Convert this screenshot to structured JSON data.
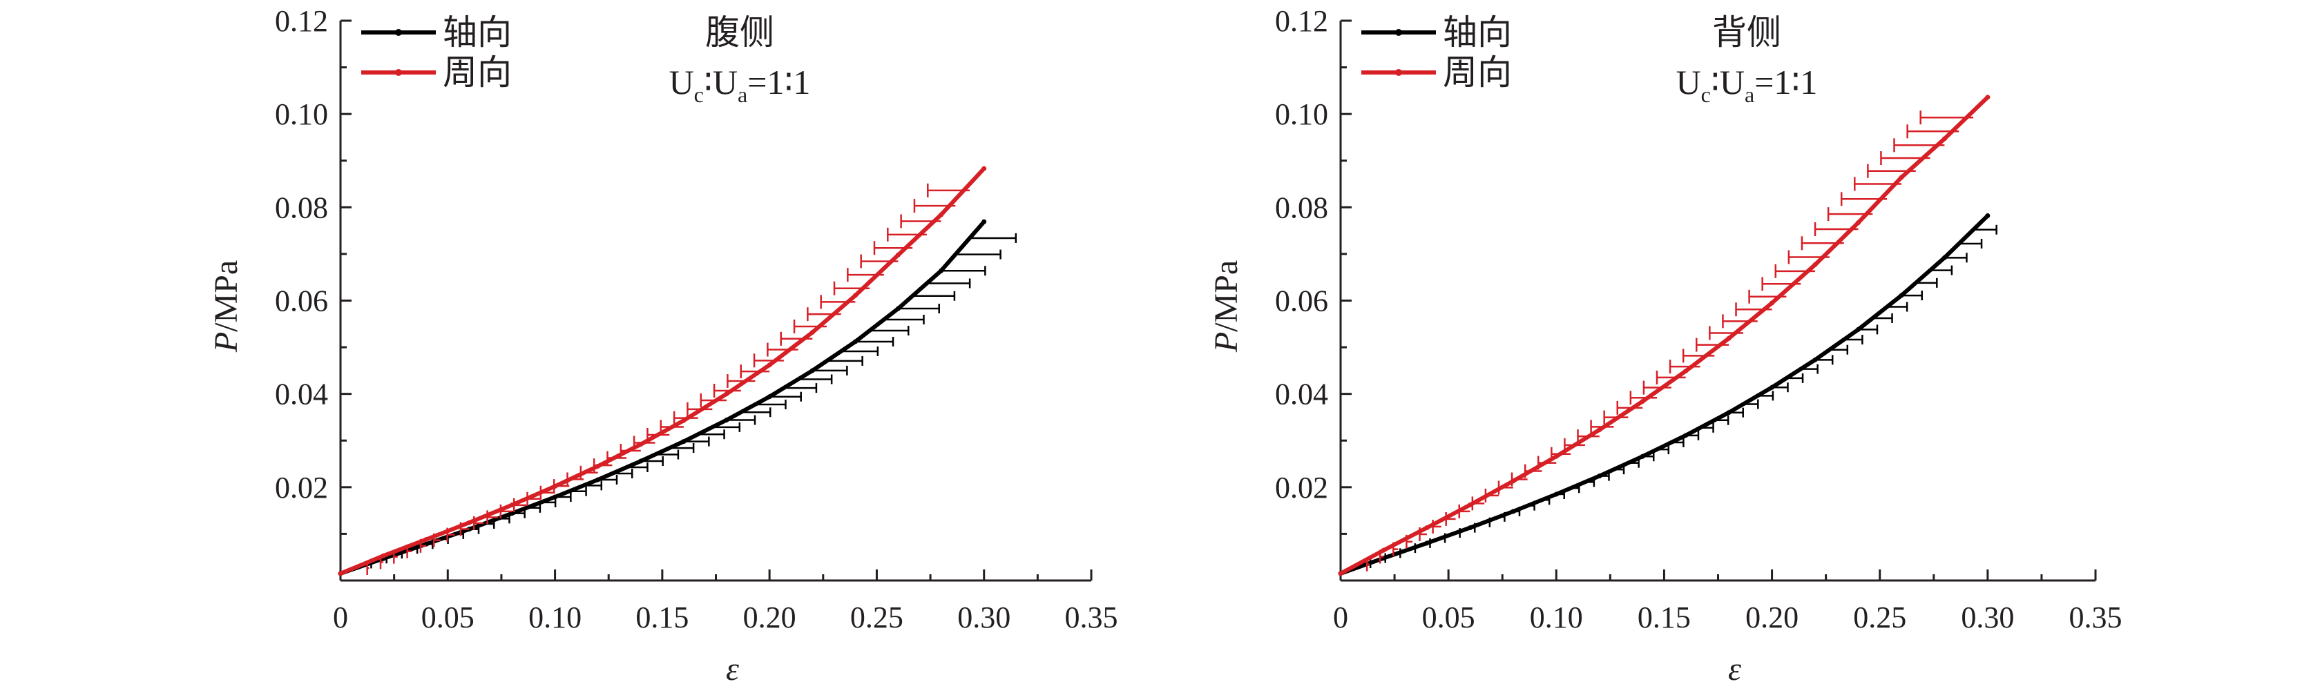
{
  "chart_data": [
    {
      "type": "line",
      "panel_label": "腹侧",
      "ratio_label": {
        "u1": "U",
        "s1": "c",
        "colon": "∶",
        "u2": "U",
        "s2": "a",
        "rest": "=1∶1"
      },
      "xlabel": "ε",
      "ylabel_italic": "P",
      "ylabel_unit": "/MPa",
      "xlim": [
        0,
        0.35
      ],
      "ylim": [
        0,
        0.12
      ],
      "xticks": [
        0,
        0.05,
        0.1,
        0.15,
        0.2,
        0.25,
        0.3,
        0.35
      ],
      "xtick_labels": [
        "0",
        "0.05",
        "0.10",
        "0.15",
        "0.20",
        "0.25",
        "0.30",
        "0.35"
      ],
      "yticks": [
        0.02,
        0.04,
        0.06,
        0.08,
        0.1,
        0.12
      ],
      "ytick_labels": [
        "0.02",
        "0.04",
        "0.06",
        "0.08",
        "0.10",
        "0.12"
      ],
      "legend_position": "top-left",
      "series": [
        {
          "name": "轴向",
          "color": "#000000",
          "x": [
            0,
            0.02,
            0.04,
            0.06,
            0.08,
            0.1,
            0.12,
            0.14,
            0.16,
            0.18,
            0.2,
            0.22,
            0.24,
            0.26,
            0.28,
            0.3
          ],
          "y": [
            0.0015,
            0.0047,
            0.0078,
            0.011,
            0.0144,
            0.0179,
            0.0216,
            0.0256,
            0.0298,
            0.0344,
            0.0394,
            0.045,
            0.0512,
            0.0583,
            0.0664,
            0.0769
          ],
          "error_x_max": 0.022
        },
        {
          "name": "周向",
          "color": "#d71f26",
          "x": [
            0,
            0.02,
            0.04,
            0.06,
            0.08,
            0.1,
            0.12,
            0.14,
            0.16,
            0.18,
            0.2,
            0.22,
            0.24,
            0.26,
            0.28,
            0.3
          ],
          "y": [
            0.0015,
            0.0053,
            0.0088,
            0.0124,
            0.0162,
            0.0202,
            0.0245,
            0.0292,
            0.0343,
            0.04,
            0.0462,
            0.0532,
            0.0611,
            0.0698,
            0.0784,
            0.0883
          ],
          "error_x_max": -0.02
        }
      ]
    },
    {
      "type": "line",
      "panel_label": "背侧",
      "ratio_label": {
        "u1": "U",
        "s1": "c",
        "colon": "∶",
        "u2": "U",
        "s2": "a",
        "rest": "=1∶1"
      },
      "xlabel": "ε",
      "ylabel_italic": "P",
      "ylabel_unit": "/MPa",
      "xlim": [
        0,
        0.35
      ],
      "ylim": [
        0,
        0.12
      ],
      "xticks": [
        0,
        0.05,
        0.1,
        0.15,
        0.2,
        0.25,
        0.3,
        0.35
      ],
      "xtick_labels": [
        "0",
        "0.05",
        "0.10",
        "0.15",
        "0.20",
        "0.25",
        "0.30",
        "0.35"
      ],
      "yticks": [
        0.02,
        0.04,
        0.06,
        0.08,
        0.1,
        0.12
      ],
      "ytick_labels": [
        "0.02",
        "0.04",
        "0.06",
        "0.08",
        "0.10",
        "0.12"
      ],
      "legend_position": "top-left",
      "series": [
        {
          "name": "轴向",
          "color": "#000000",
          "x": [
            0,
            0.02,
            0.04,
            0.06,
            0.08,
            0.1,
            0.12,
            0.14,
            0.16,
            0.18,
            0.2,
            0.22,
            0.24,
            0.26,
            0.28,
            0.3
          ],
          "y": [
            0.0015,
            0.0048,
            0.008,
            0.0113,
            0.0148,
            0.0185,
            0.0224,
            0.0266,
            0.0311,
            0.036,
            0.0414,
            0.0473,
            0.0538,
            0.0611,
            0.0692,
            0.0782
          ],
          "error_x_max": 0.011
        },
        {
          "name": "周向",
          "color": "#d71f26",
          "x": [
            0,
            0.02,
            0.04,
            0.06,
            0.08,
            0.1,
            0.12,
            0.14,
            0.16,
            0.18,
            0.2,
            0.22,
            0.24,
            0.26,
            0.28,
            0.3
          ],
          "y": [
            0.0015,
            0.0065,
            0.0113,
            0.0162,
            0.0213,
            0.0266,
            0.0323,
            0.0384,
            0.0449,
            0.0519,
            0.0595,
            0.0677,
            0.0767,
            0.0864,
            0.0947,
            0.1036
          ],
          "error_x_max": -0.025
        }
      ]
    }
  ]
}
